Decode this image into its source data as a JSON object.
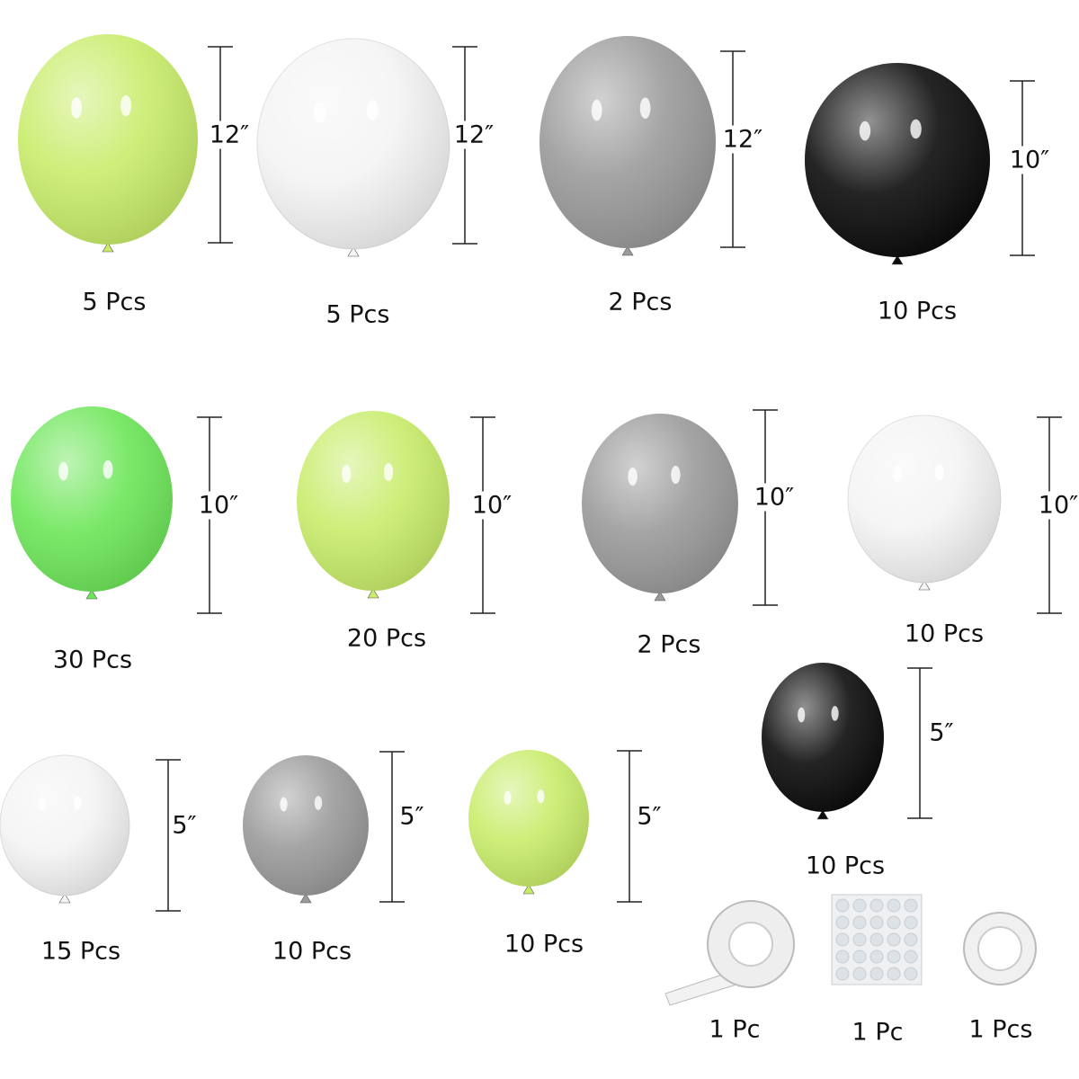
{
  "colors": {
    "lime": "#c8ec6a",
    "white": "#f4f4f4",
    "silver": "#9a9a9a",
    "black": "#0c0c0c",
    "green": "#6ee65a",
    "ruler": "#222222"
  },
  "balloons": [
    {
      "color": "lime",
      "size": "12″",
      "count": "5 Pcs"
    },
    {
      "color": "white",
      "size": "12″",
      "count": "5 Pcs"
    },
    {
      "color": "silver",
      "size": "12″",
      "count": "2 Pcs"
    },
    {
      "color": "black",
      "size": "10″",
      "count": "10 Pcs"
    },
    {
      "color": "green",
      "size": "10″",
      "count": "30 Pcs"
    },
    {
      "color": "lime",
      "size": "10″",
      "count": "20 Pcs"
    },
    {
      "color": "silver",
      "size": "10″",
      "count": "2 Pcs"
    },
    {
      "color": "white",
      "size": "10″",
      "count": "10 Pcs"
    },
    {
      "color": "black",
      "size": "5″",
      "count": "10 Pcs"
    },
    {
      "color": "white",
      "size": "5″",
      "count": "15 Pcs"
    },
    {
      "color": "silver",
      "size": "5″",
      "count": "10 Pcs"
    },
    {
      "color": "lime",
      "size": "5″",
      "count": "10 Pcs"
    }
  ],
  "accessories": [
    {
      "item": "balloon-tape-strip",
      "count": "1 Pc"
    },
    {
      "item": "glue-dot-sheet",
      "count": "1 Pc"
    },
    {
      "item": "ribbon-roll",
      "count": "1 Pcs"
    }
  ]
}
